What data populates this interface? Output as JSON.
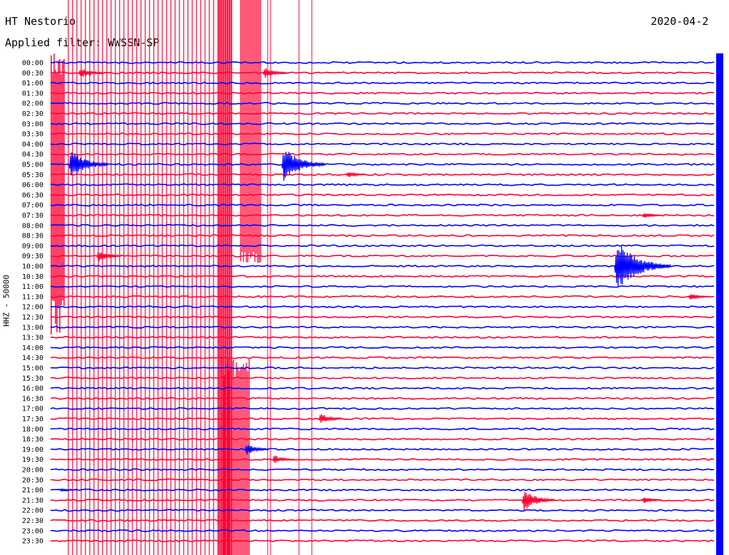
{
  "header": {
    "station": "HT Nestorio",
    "filter": "Applied filter: WWSSN-SP",
    "date": "2020-04-2"
  },
  "colors": {
    "blue": "#0000ff",
    "red": "#ff0033"
  },
  "chart_data": {
    "type": "line",
    "title": "HT Nestorio",
    "subtitle": "Applied filter: WWSSN-SP",
    "ylabel": "HHZ - 50000",
    "row_labels": [
      "00:00",
      "00:30",
      "01:00",
      "01:30",
      "02:00",
      "02:30",
      "03:00",
      "03:30",
      "04:00",
      "04:30",
      "05:00",
      "05:30",
      "06:00",
      "06:30",
      "07:00",
      "07:30",
      "08:00",
      "08:30",
      "09:00",
      "09:30",
      "10:00",
      "10:30",
      "11:00",
      "11:30",
      "12:00",
      "12:30",
      "13:00",
      "13:30",
      "14:00",
      "14:30",
      "15:00",
      "15:30",
      "16:00",
      "16:30",
      "17:00",
      "17:30",
      "18:00",
      "18:30",
      "19:00",
      "19:30",
      "20:00",
      "20:30",
      "21:00",
      "21:30",
      "22:00",
      "22:30",
      "23:00",
      "23:30"
    ],
    "trace_colors": [
      "blue",
      "red"
    ],
    "events": [
      {
        "row": 1,
        "minute": 3,
        "amplitude": 10
      },
      {
        "row": 1,
        "minute": 23,
        "amplitude": 10
      },
      {
        "row": 10,
        "minute": 2,
        "amplitude": 24
      },
      {
        "row": 10,
        "minute": 25,
        "amplitude": 28
      },
      {
        "row": 11,
        "minute": 32,
        "amplitude": 6
      },
      {
        "row": 15,
        "minute": 64,
        "amplitude": 6
      },
      {
        "row": 19,
        "minute": 5,
        "amplitude": 10
      },
      {
        "row": 20,
        "minute": 61,
        "amplitude": 40
      },
      {
        "row": 23,
        "minute": 69,
        "amplitude": 7
      },
      {
        "row": 35,
        "minute": 29,
        "amplitude": 10
      },
      {
        "row": 38,
        "minute": 21,
        "amplitude": 10
      },
      {
        "row": 39,
        "minute": 24,
        "amplitude": 8
      },
      {
        "row": 42,
        "minute": 1,
        "amplitude": 3
      },
      {
        "row": 43,
        "minute": 51,
        "amplitude": 18
      },
      {
        "row": 43,
        "minute": 64,
        "amplitude": 6
      }
    ]
  }
}
